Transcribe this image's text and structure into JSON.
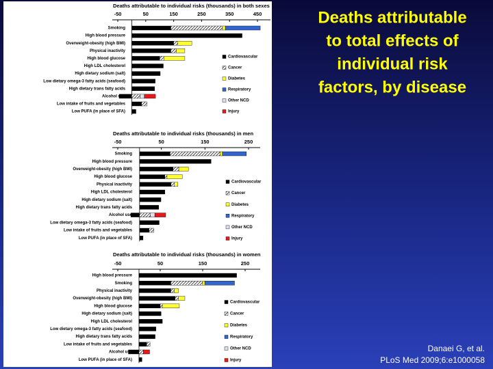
{
  "slide": {
    "title": [
      "Deaths attributable",
      "to total effects of",
      "individual risk",
      "factors, by disease"
    ],
    "citation": [
      "Danaei G, et al.",
      "PLoS Med 2009;6:e1000058"
    ]
  },
  "chart_data": [
    {
      "type": "bar",
      "orientation": "horizontal",
      "stacked": true,
      "title": "Deaths attributable to individual risks (thousands) in both sexes",
      "categories": [
        "Smoking",
        "High blood pressure",
        "Overweight-obesity (high BMI)",
        "Physical inactivity",
        "High blood glucose",
        "High LDL cholesterol",
        "High dietary sodium (salt)",
        "Low dietary omega-3 fatty acids (seafood)",
        "High dietary trans fatty acids",
        "Alcohol use",
        "Low intake of fruits and vegetables",
        "Low PUFA (in place of SFA)"
      ],
      "series": [
        {
          "name": "Cardiovascular",
          "color": "#000000",
          "values": [
            140,
            395,
            150,
            140,
            100,
            113,
            102,
            84,
            82,
            -45,
            35,
            15
          ]
        },
        {
          "name": "Cancer",
          "color": "#ffffff",
          "pattern": "hatch",
          "values": [
            185,
            null,
            15,
            20,
            15,
            null,
            null,
            null,
            null,
            30,
            20,
            null
          ]
        },
        {
          "name": "Diabetes",
          "color": "#ffff33",
          "values": [
            10,
            null,
            50,
            30,
            75,
            null,
            null,
            null,
            null,
            null,
            null,
            null
          ]
        },
        {
          "name": "Respiratory",
          "color": "#3366cc",
          "values": [
            125,
            null,
            null,
            null,
            null,
            null,
            null,
            null,
            null,
            null,
            null,
            null
          ]
        },
        {
          "name": "Other NCD",
          "color": "#dde3f0",
          "values": [
            null,
            null,
            null,
            null,
            null,
            null,
            null,
            null,
            null,
            15,
            null,
            null
          ]
        },
        {
          "name": "Injury",
          "color": "#e41a1c",
          "values": [
            null,
            null,
            null,
            null,
            null,
            null,
            null,
            null,
            null,
            40,
            null,
            null
          ]
        }
      ],
      "xlim": [
        -50,
        450
      ],
      "xticks": [
        -50,
        50,
        150,
        250,
        350,
        450
      ]
    },
    {
      "type": "bar",
      "orientation": "horizontal",
      "stacked": true,
      "title": "Deaths attributable to individual risks (thousands) in men",
      "categories": [
        "Smoking",
        "High blood pressure",
        "Overweight-obesity (high BMI)",
        "High blood glucose",
        "Physical inactivity",
        "High LDL cholesterol",
        "High dietary sodium (salt)",
        "High dietary trans fatty acids",
        "Alcohol use",
        "Low dietary omega-3 fatty acids (seafood)",
        "Low intake of fruits and vegetables",
        "Low PUFA (in place of SFA)"
      ],
      "series": [
        {
          "name": "Cardiovascular",
          "color": "#000000",
          "values": [
            70,
            164,
            77,
            58,
            72,
            58,
            49,
            44,
            -20,
            45,
            22,
            8
          ]
        },
        {
          "name": "Cancer",
          "color": "#ffffff",
          "pattern": "hatch",
          "values": [
            115,
            null,
            13,
            5,
            8,
            null,
            null,
            null,
            25,
            null,
            11,
            null
          ]
        },
        {
          "name": "Diabetes",
          "color": "#ffff33",
          "values": [
            5,
            null,
            22,
            35,
            8,
            null,
            null,
            null,
            null,
            null,
            null,
            null
          ]
        },
        {
          "name": "Respiratory",
          "color": "#3366cc",
          "values": [
            55,
            null,
            null,
            null,
            null,
            null,
            null,
            null,
            null,
            null,
            null,
            null
          ]
        },
        {
          "name": "Other NCD",
          "color": "#dde3f0",
          "values": [
            null,
            null,
            null,
            null,
            null,
            null,
            null,
            null,
            10,
            null,
            null,
            null
          ]
        },
        {
          "name": "Injury",
          "color": "#e41a1c",
          "values": [
            null,
            null,
            null,
            null,
            null,
            null,
            null,
            null,
            25,
            null,
            null,
            null
          ]
        }
      ],
      "xlim": [
        -50,
        250
      ],
      "xticks": [
        -50,
        50,
        150,
        250
      ]
    },
    {
      "type": "bar",
      "orientation": "horizontal",
      "stacked": true,
      "title": "Deaths attributable to individual risks (thousands) in women",
      "categories": [
        "High blood pressure",
        "Smoking",
        "Physical inactivity",
        "Overweight-obesity (high BMI)",
        "High blood glucose",
        "High dietary sodium (salt)",
        "High LDL cholesterol",
        "Low dietary omega-3 fatty acids (seafood)",
        "High dietary trans fatty acids",
        "Low intake of fruits and vegetables",
        "Alcohol use",
        "Low PUFA (in place of SFA)"
      ],
      "series": [
        {
          "name": "Cardiovascular",
          "color": "#000000",
          "values": [
            230,
            75,
            75,
            85,
            50,
            52,
            55,
            40,
            38,
            18,
            -25,
            7
          ]
        },
        {
          "name": "Cancer",
          "color": "#ffffff",
          "pattern": "hatch",
          "values": [
            null,
            75,
            8,
            8,
            5,
            null,
            null,
            null,
            null,
            8,
            10,
            null
          ]
        },
        {
          "name": "Diabetes",
          "color": "#ffff33",
          "values": [
            null,
            5,
            10,
            15,
            40,
            null,
            null,
            null,
            null,
            null,
            null,
            null
          ]
        },
        {
          "name": "Respiratory",
          "color": "#3366cc",
          "values": [
            null,
            70,
            null,
            null,
            null,
            null,
            null,
            null,
            null,
            null,
            null,
            null
          ]
        },
        {
          "name": "Other NCD",
          "color": "#dde3f0",
          "values": [
            null,
            null,
            null,
            null,
            null,
            null,
            null,
            null,
            null,
            null,
            null,
            null
          ]
        },
        {
          "name": "Injury",
          "color": "#e41a1c",
          "values": [
            null,
            null,
            null,
            null,
            null,
            null,
            null,
            null,
            null,
            null,
            15,
            null
          ]
        }
      ],
      "xlim": [
        -50,
        250
      ],
      "xticks": [
        -50,
        50,
        150,
        250
      ]
    }
  ]
}
